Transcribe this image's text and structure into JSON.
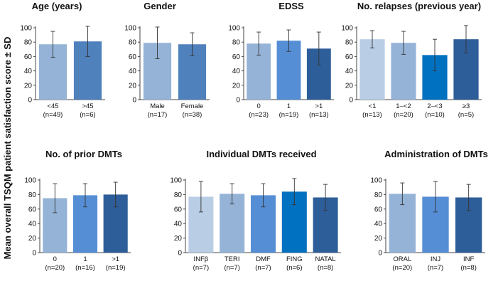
{
  "ylabel": "Mean overall TSQM patient satisfaction score ± SD",
  "chart_data": [
    {
      "type": "bar",
      "title": "Age (years)",
      "ylim": [
        0,
        100
      ],
      "yticks": [
        0,
        20,
        40,
        60,
        80,
        100
      ],
      "categories": [
        "<45",
        ">45"
      ],
      "n_labels": [
        "(n=49)",
        "(n=6)"
      ],
      "values": [
        77,
        81
      ],
      "sd": [
        18,
        21
      ],
      "colors": [
        "#95B3D7",
        "#4F81BD"
      ]
    },
    {
      "type": "bar",
      "title": "Gender",
      "ylim": [
        0,
        100
      ],
      "yticks": [
        0,
        20,
        40,
        60,
        80,
        100
      ],
      "categories": [
        "Male",
        "Female"
      ],
      "n_labels": [
        "(n=17)",
        "(n=38)"
      ],
      "values": [
        79,
        77
      ],
      "sd": [
        22,
        16
      ],
      "colors": [
        "#95B3D7",
        "#4F81BD"
      ]
    },
    {
      "type": "bar",
      "title": "EDSS",
      "ylim": [
        0,
        100
      ],
      "yticks": [
        0,
        20,
        40,
        60,
        80,
        100
      ],
      "categories": [
        "0",
        "1",
        ">1"
      ],
      "n_labels": [
        "(n=23)",
        "(n=19)",
        "(n=13)"
      ],
      "values": [
        78,
        82,
        71
      ],
      "sd": [
        16,
        15,
        23
      ],
      "colors": [
        "#95B3D7",
        "#558ED5",
        "#2E5E99"
      ]
    },
    {
      "type": "bar",
      "title": "No. relapses (previous year)",
      "ylim": [
        0,
        100
      ],
      "yticks": [
        0,
        20,
        40,
        60,
        80,
        100
      ],
      "categories": [
        "<1",
        "1–<2",
        "2–<3",
        "≥3"
      ],
      "n_labels": [
        "(n=13)",
        "(n=20)",
        "(n=10)",
        "(n=5)"
      ],
      "values": [
        84,
        79,
        62,
        84
      ],
      "sd": [
        12,
        16,
        22,
        19
      ],
      "colors": [
        "#B9CDE5",
        "#95B3D7",
        "#0070C0",
        "#2E5E99"
      ]
    },
    {
      "type": "bar",
      "title": "No. of prior DMTs",
      "ylim": [
        0,
        100
      ],
      "yticks": [
        0,
        20,
        40,
        60,
        80,
        100
      ],
      "categories": [
        "0",
        "1",
        ">1"
      ],
      "n_labels": [
        "(n=20)",
        "(n=16)",
        "(n=19)"
      ],
      "values": [
        75,
        79,
        80
      ],
      "sd": [
        20,
        16,
        17
      ],
      "colors": [
        "#95B3D7",
        "#558ED5",
        "#2E5E99"
      ]
    },
    {
      "type": "bar",
      "title": "Individual DMTs received",
      "ylim": [
        0,
        100
      ],
      "yticks": [
        0,
        20,
        40,
        60,
        80,
        100
      ],
      "categories": [
        "INFβ",
        "TERI",
        "DMF",
        "FING",
        "NATAL"
      ],
      "n_labels": [
        "(n=7)",
        "(n=7)",
        "(n=7)",
        "(n=6)",
        "(n=8)"
      ],
      "values": [
        77,
        81,
        79,
        84,
        76
      ],
      "sd": [
        21,
        14,
        16,
        18,
        18
      ],
      "colors": [
        "#B9CDE5",
        "#95B3D7",
        "#558ED5",
        "#0070C0",
        "#2E5E99"
      ]
    },
    {
      "type": "bar",
      "title": "Administration of DMTs",
      "ylim": [
        0,
        100
      ],
      "yticks": [
        0,
        20,
        40,
        60,
        80,
        100
      ],
      "categories": [
        "ORAL",
        "INJ",
        "INF"
      ],
      "n_labels": [
        "(n=20)",
        "(n=7)",
        "(n=8)"
      ],
      "values": [
        81,
        77,
        76
      ],
      "sd": [
        15,
        21,
        18
      ],
      "colors": [
        "#95B3D7",
        "#558ED5",
        "#2E5E99"
      ]
    }
  ]
}
